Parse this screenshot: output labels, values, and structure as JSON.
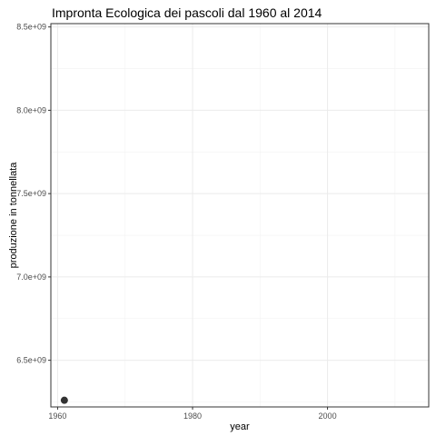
{
  "chart_data": {
    "type": "scatter",
    "title": "Impronta Ecologica dei pascoli dal 1960 al 2014",
    "xlabel": "year",
    "ylabel": "produzione in tonnellata",
    "xlim": [
      1959,
      2015
    ],
    "ylim": [
      6220000000,
      8520000000
    ],
    "x_ticks": [
      1960,
      1980,
      2000
    ],
    "x_tick_labels": [
      "1960",
      "1980",
      "2000"
    ],
    "y_ticks": [
      6500000000,
      7000000000,
      7500000000,
      8000000000,
      8500000000
    ],
    "y_tick_labels": [
      "6.5e+09",
      "7.0e+09",
      "7.5e+09",
      "8.0e+09",
      "8.5e+09"
    ],
    "grid": true,
    "points": [
      {
        "x": 1961,
        "y": 6260000000
      }
    ],
    "colors": {
      "point": "#333333",
      "border": "#333333",
      "grid": "#ebebeb",
      "background": "#ffffff"
    }
  }
}
